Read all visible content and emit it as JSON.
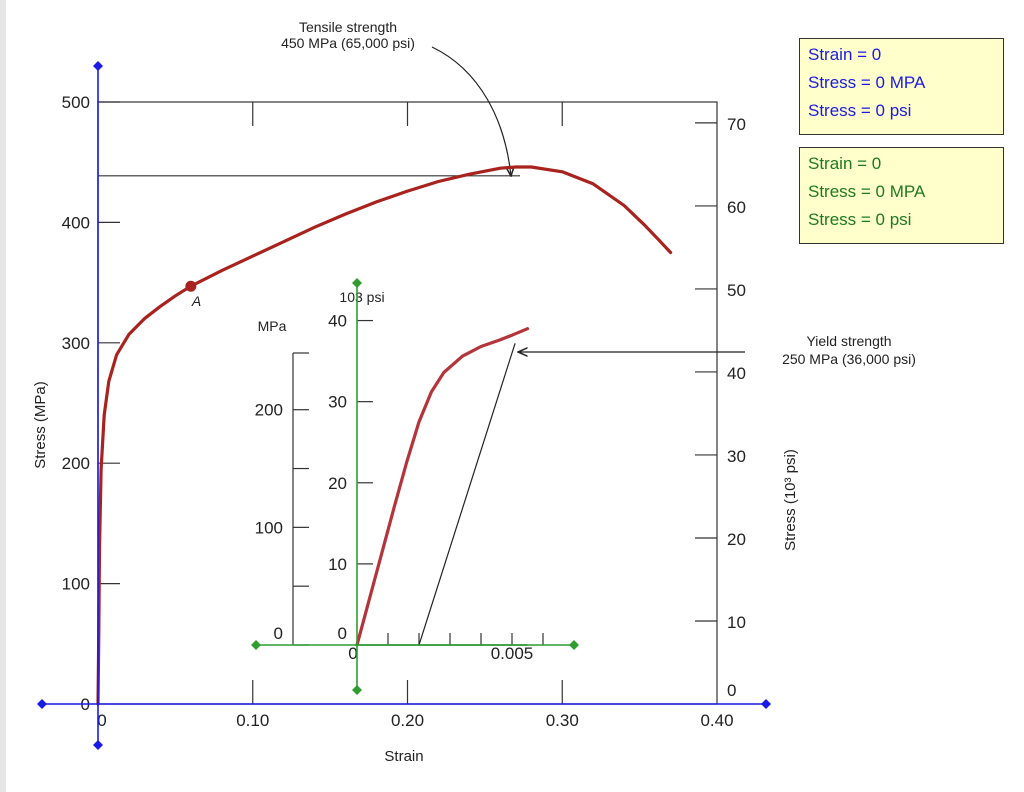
{
  "chart_data": {
    "type": "line",
    "title": "",
    "main": {
      "xlabel": "Strain",
      "ylabel_left": "Stress (MPa)",
      "ylabel_right": "Stress (10³ psi)",
      "xlim": [
        0,
        0.4
      ],
      "ylim_mpa": [
        0,
        500
      ],
      "x_ticks": [
        0,
        0.1,
        0.2,
        0.3,
        0.4
      ],
      "x_tick_labels": [
        "0",
        "0.10",
        "0.20",
        "0.30",
        "0.40"
      ],
      "left_ticks": [
        0,
        100,
        200,
        300,
        400,
        500
      ],
      "left_tick_labels": [
        "0",
        "100",
        "200",
        "300",
        "400",
        "500"
      ],
      "right_ticks_ksi": [
        0,
        10,
        20,
        30,
        40,
        50,
        60,
        70
      ],
      "right_tick_labels": [
        "0",
        "10",
        "20",
        "30",
        "40",
        "50",
        "60",
        "70"
      ],
      "series": [
        {
          "color": "#a8231e",
          "x": [
            0.0,
            0.0005,
            0.001,
            0.002,
            0.004,
            0.007,
            0.012,
            0.02,
            0.03,
            0.04,
            0.05,
            0.06,
            0.08,
            0.1,
            0.12,
            0.14,
            0.16,
            0.18,
            0.2,
            0.22,
            0.24,
            0.26,
            0.27,
            0.28,
            0.3,
            0.32,
            0.34,
            0.353,
            0.362,
            0.37
          ],
          "y": [
            0,
            60,
            130,
            195,
            240,
            268,
            290,
            307,
            320,
            330,
            339,
            347,
            360,
            372,
            384,
            396,
            407,
            417,
            426,
            434,
            440,
            445,
            446,
            446,
            442,
            432,
            414,
            398,
            386,
            375
          ]
        }
      ],
      "point_A": {
        "label": "A",
        "x": 0.06,
        "y": 347
      }
    },
    "inset": {
      "xlim": [
        0,
        0.007
      ],
      "ylim_ksi": [
        0,
        45
      ],
      "x_tick_labels": [
        "0",
        "0.005"
      ],
      "psi_unit": "103 psi",
      "mpa_unit": "MPa",
      "psi_tick_labels": [
        "0",
        "10",
        "20",
        "30",
        "40"
      ],
      "mpa_tick_labels": [
        "0",
        "100",
        "200"
      ],
      "series": [
        {
          "color": "#b3343a",
          "x": [
            0.0,
            0.0006,
            0.0012,
            0.0016,
            0.002,
            0.0024,
            0.0028,
            0.0034,
            0.004,
            0.0046,
            0.005,
            0.0055
          ],
          "y": [
            0,
            8.5,
            17,
            22.5,
            27.5,
            31.2,
            33.6,
            35.6,
            36.8,
            37.6,
            38.2,
            39
          ]
        }
      ],
      "offset_line": {
        "x0": 0.002,
        "y0": 0,
        "x1": 0.0051,
        "y1": 37.2
      }
    },
    "annotations": {
      "tensile": {
        "line1": "Tensile strength",
        "line2": "450 MPa (65,000 psi)"
      },
      "yield": {
        "line1": "Yield strength",
        "line2": "250 MPa (36,000 psi)"
      }
    }
  },
  "readouts": {
    "blue": {
      "strain": "Strain = 0",
      "stress_mpa": "Stress = 0 MPA",
      "stress_psi": "Stress = 0 psi",
      "color": "#1a1ae6"
    },
    "green": {
      "strain": "Strain = 0",
      "stress_mpa": "Stress = 0 MPA",
      "stress_psi": "Stress = 0 psi",
      "color": "#1e7a1e"
    }
  },
  "colors": {
    "axis_blue": "#1a1ae6",
    "axis_green": "#2e9e2e",
    "curve": "#a8231e"
  }
}
